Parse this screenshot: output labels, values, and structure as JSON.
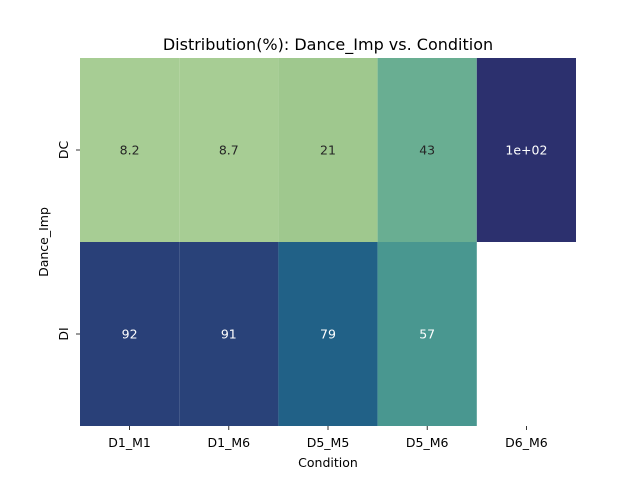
{
  "chart_data": {
    "type": "heatmap",
    "title": "Distribution(%): Dance_Imp vs. Condition",
    "xlabel": "Condition",
    "ylabel": "Dance_Imp",
    "x_categories": [
      "D1_M1",
      "D1_M6",
      "D5_M5",
      "D5_M6",
      "D6_M6"
    ],
    "y_categories": [
      "DC",
      "DI"
    ],
    "values": [
      [
        8.2,
        8.7,
        21,
        43,
        100
      ],
      [
        92,
        91,
        79,
        57,
        null
      ]
    ],
    "value_labels": [
      [
        "8.2",
        "8.7",
        "21",
        "43",
        "1e+02"
      ],
      [
        "92",
        "91",
        "79",
        "57",
        ""
      ]
    ],
    "colormap": "crest",
    "colorbar": false
  }
}
